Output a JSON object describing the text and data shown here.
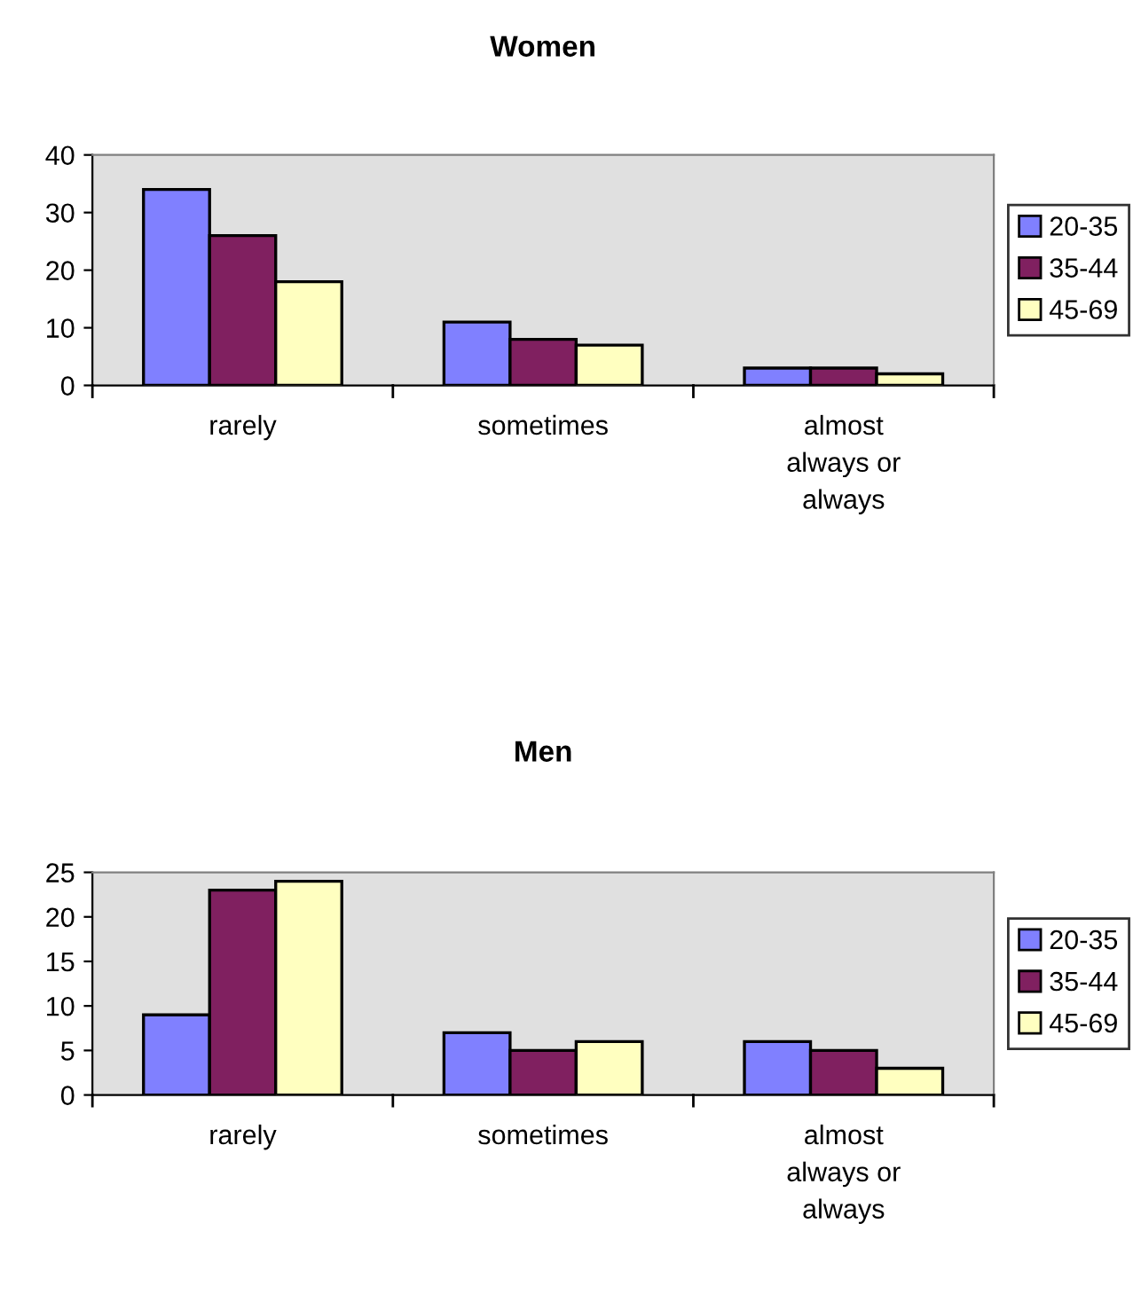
{
  "chart_data": [
    {
      "type": "bar",
      "title": "Women",
      "categories": [
        "rarely",
        "sometimes",
        "almost\nalways or\nalways"
      ],
      "series": [
        {
          "name": "20-35",
          "color": "#8080ff",
          "values": [
            34,
            11,
            3
          ]
        },
        {
          "name": "35-44",
          "color": "#802060",
          "values": [
            26,
            8,
            3
          ]
        },
        {
          "name": "45-69",
          "color": "#ffffc0",
          "values": [
            18,
            7,
            2
          ]
        }
      ],
      "ylim": [
        0,
        40
      ],
      "yticks": [
        0,
        10,
        20,
        30,
        40
      ],
      "grid": false,
      "legend": "right"
    },
    {
      "type": "bar",
      "title": "Men",
      "categories": [
        "rarely",
        "sometimes",
        "almost\nalways or\nalways"
      ],
      "series": [
        {
          "name": "20-35",
          "color": "#8080ff",
          "values": [
            9,
            7,
            6
          ]
        },
        {
          "name": "35-44",
          "color": "#802060",
          "values": [
            23,
            5,
            5
          ]
        },
        {
          "name": "45-69",
          "color": "#ffffc0",
          "values": [
            24,
            6,
            3
          ]
        }
      ],
      "ylim": [
        0,
        25
      ],
      "yticks": [
        0,
        5,
        10,
        15,
        20,
        25
      ],
      "grid": false,
      "legend": "right"
    }
  ]
}
